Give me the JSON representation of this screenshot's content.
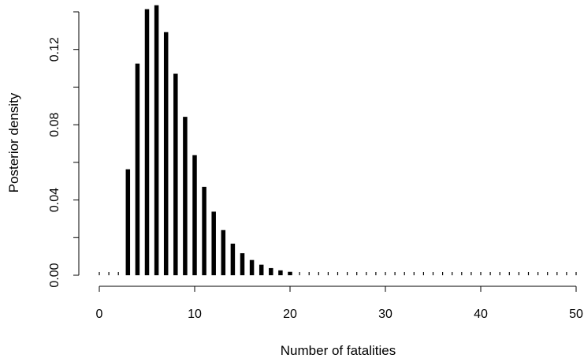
{
  "chart_data": {
    "type": "bar",
    "title": "",
    "xlabel": "Number of fatalities",
    "ylabel": "Posterior density",
    "xlim": [
      0,
      50
    ],
    "ylim": [
      0,
      0.14
    ],
    "grid": false,
    "legend": "none",
    "bar_color": "#000000",
    "x_ticks": [
      0,
      10,
      20,
      30,
      40,
      50
    ],
    "x_tick_labels": [
      "0",
      "10",
      "20",
      "30",
      "40",
      "50"
    ],
    "y_ticks": [
      0,
      0.04,
      0.08,
      0.12
    ],
    "y_tick_labels": [
      "0.00",
      "0.04",
      "0.08",
      "0.12"
    ],
    "x": [
      0,
      1,
      2,
      3,
      4,
      5,
      6,
      7,
      8,
      9,
      10,
      11,
      12,
      13,
      14,
      15,
      16,
      17,
      18,
      19,
      20,
      21,
      22,
      23,
      24,
      25,
      26,
      27,
      28,
      29,
      30,
      31,
      32,
      33,
      34,
      35,
      36,
      37,
      38,
      39,
      40,
      41,
      42,
      43,
      44,
      45,
      46,
      47,
      48,
      49,
      50
    ],
    "values": [
      0,
      0,
      0,
      0.0563,
      0.1125,
      0.1414,
      0.1435,
      0.1292,
      0.1071,
      0.0842,
      0.0638,
      0.047,
      0.0338,
      0.024,
      0.0168,
      0.0117,
      0.0081,
      0.0056,
      0.0038,
      0.0026,
      0.0018,
      0.0012,
      0.0008,
      0.0005,
      0.0004,
      0.0002,
      0.0002,
      0.0001,
      0.0001,
      0.0001,
      0,
      0,
      0,
      0,
      0,
      0,
      0,
      0,
      0,
      0,
      0,
      0,
      0,
      0,
      0,
      0,
      0,
      0,
      0,
      0,
      0
    ]
  }
}
